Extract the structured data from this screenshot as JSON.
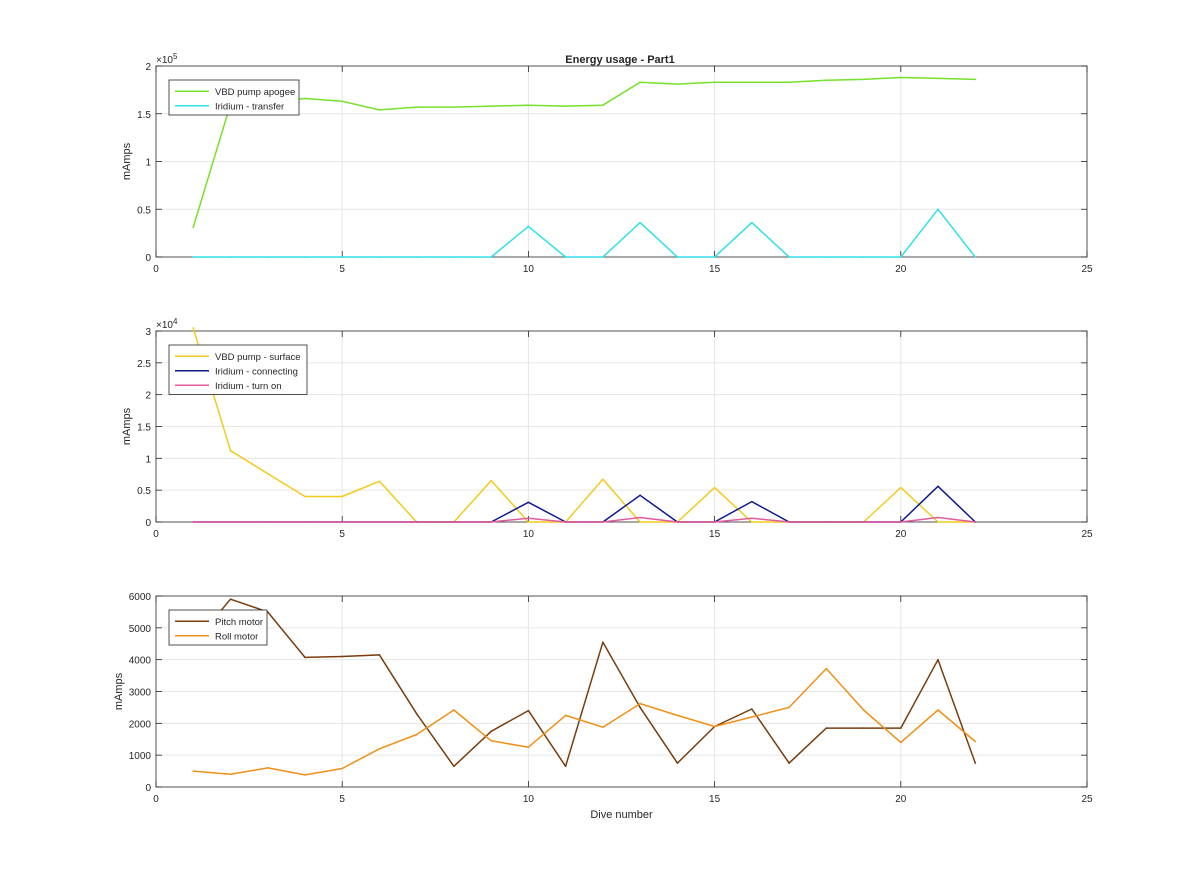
{
  "figure": {
    "title": "Energy usage - Part1"
  },
  "chart_data": [
    {
      "type": "line",
      "title": "Energy usage - Part1",
      "xlabel": "",
      "ylabel": "mAmps",
      "xlim": [
        0,
        25
      ],
      "ylim": [
        0,
        200000
      ],
      "xticks": [
        0,
        5,
        10,
        15,
        20,
        25
      ],
      "yticks": [
        0,
        50000,
        100000,
        150000,
        200000
      ],
      "ytick_labels": [
        "0",
        "0.5",
        "1",
        "1.5",
        "2"
      ],
      "exponent": "5",
      "grid": true,
      "legend": "top-left",
      "x": [
        1,
        2,
        3,
        4,
        5,
        6,
        7,
        8,
        9,
        10,
        11,
        12,
        13,
        14,
        15,
        16,
        17,
        18,
        19,
        20,
        21,
        22
      ],
      "series": [
        {
          "name": "VBD pump apogee",
          "color": "#77e02a",
          "values": [
            31000,
            160000,
            162000,
            166000,
            163000,
            154000,
            157000,
            157000,
            158000,
            159000,
            158000,
            159000,
            183000,
            181000,
            183000,
            183000,
            183000,
            185000,
            186000,
            188000,
            187000,
            186000
          ]
        },
        {
          "name": "Iridium - transfer",
          "color": "#2ee0e8",
          "values": [
            0,
            0,
            0,
            0,
            0,
            0,
            0,
            0,
            0,
            32000,
            0,
            0,
            36000,
            0,
            0,
            36000,
            0,
            0,
            0,
            0,
            50000,
            0
          ]
        }
      ]
    },
    {
      "type": "line",
      "title": "",
      "xlabel": "",
      "ylabel": "mAmps",
      "xlim": [
        0,
        25
      ],
      "ylim": [
        0,
        30000
      ],
      "xticks": [
        0,
        5,
        10,
        15,
        20,
        25
      ],
      "yticks": [
        0,
        5000,
        10000,
        15000,
        20000,
        25000,
        30000
      ],
      "ytick_labels": [
        "0",
        "0.5",
        "1",
        "1.5",
        "2",
        "2.5",
        "3"
      ],
      "exponent": "4",
      "grid": true,
      "legend": "top-left",
      "x": [
        1,
        2,
        3,
        4,
        5,
        6,
        7,
        8,
        9,
        10,
        11,
        12,
        13,
        14,
        15,
        16,
        17,
        18,
        19,
        20,
        21,
        22
      ],
      "series": [
        {
          "name": "VBD pump - surface",
          "color": "#f2cb1c",
          "values": [
            30500,
            11200,
            7600,
            4000,
            4000,
            6400,
            0,
            0,
            6500,
            0,
            0,
            6700,
            0,
            0,
            5400,
            0,
            0,
            0,
            0,
            5400,
            0,
            0
          ]
        },
        {
          "name": "Iridium - connecting",
          "color": "#0c1a8c",
          "values": [
            0,
            0,
            0,
            0,
            0,
            0,
            0,
            0,
            0,
            3100,
            0,
            0,
            4200,
            0,
            0,
            3200,
            0,
            0,
            0,
            0,
            5600,
            0
          ]
        },
        {
          "name": "Iridium - turn on",
          "color": "#e35aa0",
          "values": [
            0,
            0,
            0,
            0,
            0,
            0,
            0,
            0,
            0,
            600,
            0,
            0,
            700,
            0,
            0,
            600,
            0,
            0,
            0,
            0,
            700,
            0
          ]
        }
      ]
    },
    {
      "type": "line",
      "title": "",
      "xlabel": "Dive number",
      "ylabel": "mAmps",
      "xlim": [
        0,
        25
      ],
      "ylim": [
        0,
        6000
      ],
      "xticks": [
        0,
        5,
        10,
        15,
        20,
        25
      ],
      "yticks": [
        0,
        1000,
        2000,
        3000,
        4000,
        5000,
        6000
      ],
      "ytick_labels": [
        "0",
        "1000",
        "2000",
        "3000",
        "4000",
        "5000",
        "6000"
      ],
      "exponent": "",
      "grid": true,
      "legend": "top-left",
      "x": [
        1,
        2,
        3,
        4,
        5,
        6,
        7,
        8,
        9,
        10,
        11,
        12,
        13,
        14,
        15,
        16,
        17,
        18,
        19,
        20,
        21,
        22
      ],
      "series": [
        {
          "name": "Pitch motor",
          "color": "#7a3c0c",
          "values": [
            4500,
            5900,
            5500,
            4070,
            4100,
            4150,
            2300,
            650,
            1750,
            2400,
            650,
            4550,
            2500,
            750,
            1900,
            2450,
            750,
            1850,
            1850,
            1850,
            4000,
            750
          ]
        },
        {
          "name": "Roll motor",
          "color": "#ee9018",
          "values": [
            500,
            400,
            600,
            380,
            580,
            1200,
            1650,
            2420,
            1450,
            1250,
            2250,
            1880,
            2620,
            2250,
            1900,
            2200,
            2500,
            3720,
            2420,
            1400,
            2420,
            1430
          ]
        }
      ]
    }
  ]
}
